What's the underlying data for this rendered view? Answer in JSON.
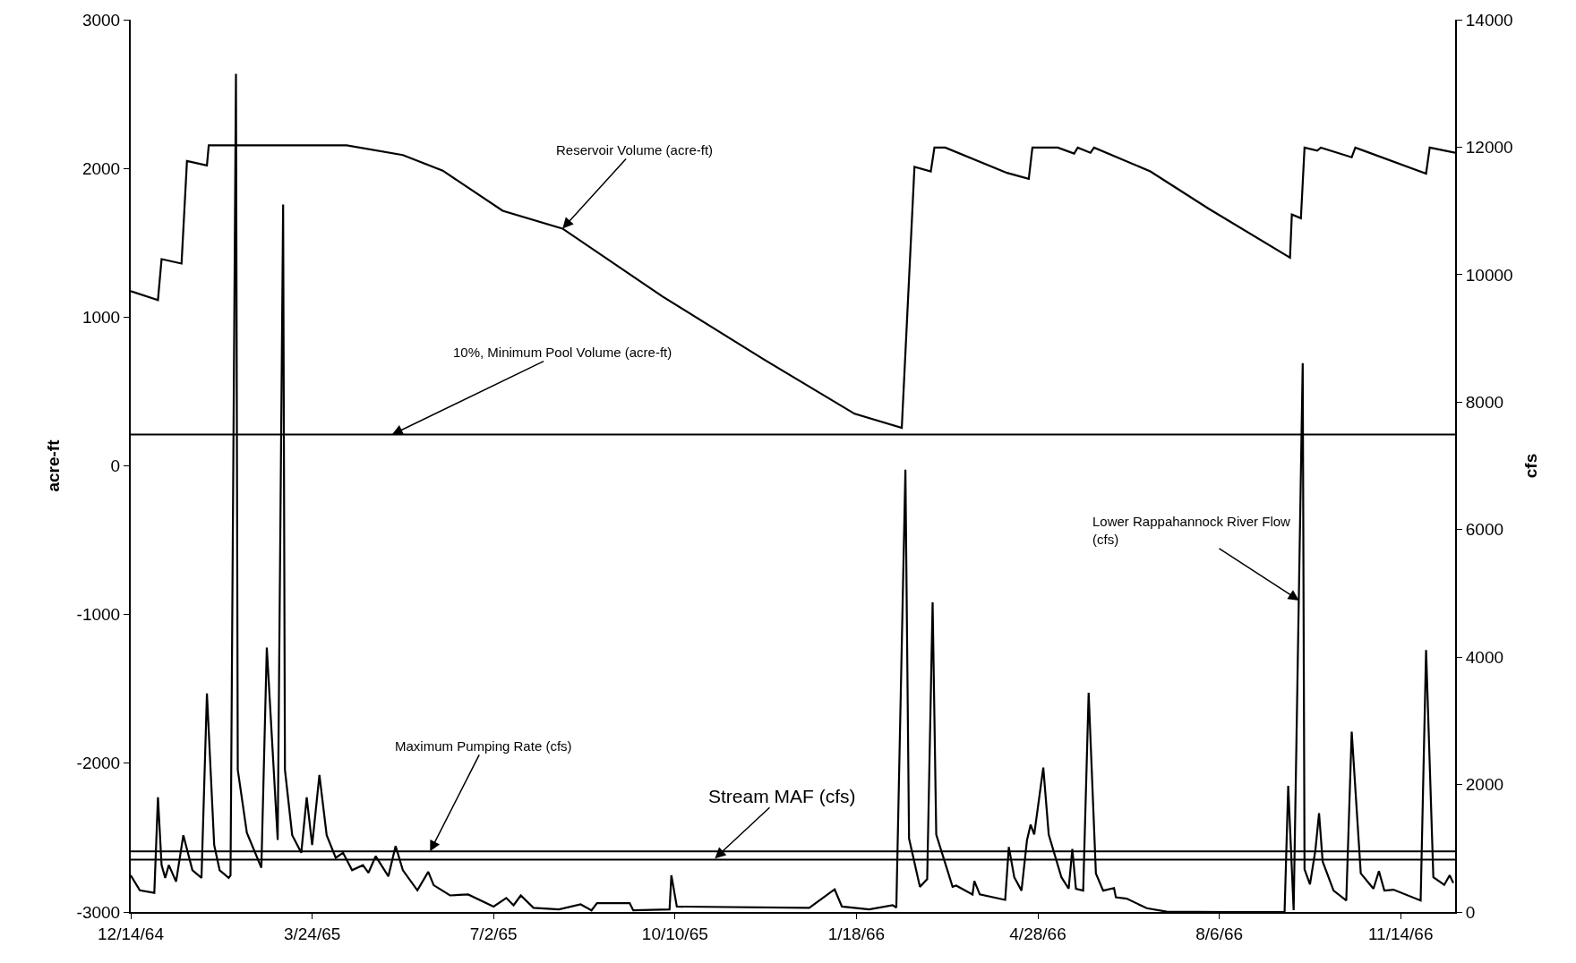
{
  "chart_data": {
    "type": "line",
    "ylabel": "acre-ft",
    "y2label": "cfs",
    "xlim": [
      "1964-12-14",
      "1966-12-14"
    ],
    "xticks": [
      {
        "value": "1964-12-14",
        "label": "12/14/64"
      },
      {
        "value": "1965-03-24",
        "label": "3/24/65"
      },
      {
        "value": "1965-07-02",
        "label": "7/2/65"
      },
      {
        "value": "1965-10-10",
        "label": "10/10/65"
      },
      {
        "value": "1966-01-18",
        "label": "1/18/66"
      },
      {
        "value": "1966-04-28",
        "label": "4/28/66"
      },
      {
        "value": "1966-08-06",
        "label": "8/6/66"
      },
      {
        "value": "1966-11-14",
        "label": "11/14/66"
      }
    ],
    "ylim": [
      -3000,
      3000
    ],
    "yticks": [
      -3000,
      -2000,
      -1000,
      0,
      1000,
      2000,
      3000
    ],
    "y2lim": [
      0,
      14000
    ],
    "y2ticks": [
      0,
      2000,
      4000,
      6000,
      8000,
      10000,
      12000,
      14000
    ],
    "marker": "none",
    "line_style": "solid",
    "series": [
      {
        "color": "#000000",
        "x": [
          "1964-12-14",
          "1964-12-29",
          "1964-12-31",
          "1965-01-11",
          "1965-01-14",
          "1965-01-25",
          "1965-01-26",
          "1965-04-12",
          "1965-05-13",
          "1965-06-04",
          "1965-07-07",
          "1965-08-09",
          "1965-10-03",
          "1965-11-28",
          "1966-01-17",
          "1966-02-12",
          "1966-02-19",
          "1966-02-28",
          "1966-03-02",
          "1966-03-08",
          "1966-04-11",
          "1966-04-23",
          "1966-04-25",
          "1966-05-09",
          "1966-05-18",
          "1966-05-20",
          "1966-05-27",
          "1966-05-29",
          "1966-06-29",
          "1966-07-31",
          "1966-09-14",
          "1966-09-15",
          "1966-09-20",
          "1966-09-22",
          "1966-09-29",
          "1966-10-01",
          "1966-10-18",
          "1966-10-20",
          "1966-11-28",
          "1966-11-30",
          "1966-12-14"
        ],
        "values": [
          1175,
          1115,
          1390,
          1360,
          2050,
          2020,
          2155,
          2155,
          2090,
          1985,
          1715,
          1595,
          1140,
          715,
          350,
          255,
          2010,
          1980,
          2140,
          2140,
          1970,
          1930,
          2140,
          2140,
          2100,
          2140,
          2105,
          2140,
          1980,
          1730,
          1400,
          1690,
          1665,
          2140,
          2120,
          2140,
          2075,
          2140,
          1965,
          2140,
          2105
        ]
      },
      {
        "color": "#000000",
        "axis": "y2",
        "x": [
          "1964-12-14",
          "1964-12-19",
          "1964-12-27",
          "1964-12-29",
          "1964-12-31",
          "1965-01-02",
          "1965-01-04",
          "1965-01-08",
          "1965-01-12",
          "1965-01-17",
          "1965-01-22",
          "1965-01-25",
          "1965-01-29",
          "1965-02-01",
          "1965-02-06",
          "1965-02-07",
          "1965-02-10",
          "1965-02-11",
          "1965-02-16",
          "1965-02-24",
          "1965-02-27",
          "1965-03-05",
          "1965-03-08",
          "1965-03-09",
          "1965-03-13",
          "1965-03-18",
          "1965-03-21",
          "1965-03-24",
          "1965-03-28",
          "1965-04-01",
          "1965-04-06",
          "1965-04-10",
          "1965-04-15",
          "1965-04-21",
          "1965-04-24",
          "1965-04-28",
          "1965-05-05",
          "1965-05-09",
          "1965-05-13",
          "1965-05-21",
          "1965-05-27",
          "1965-05-30",
          "1965-06-08",
          "1965-06-18",
          "1965-07-02",
          "1965-07-09",
          "1965-07-13",
          "1965-07-17",
          "1965-07-24",
          "1965-08-07",
          "1965-08-19",
          "1965-08-25",
          "1965-08-28",
          "1965-09-15",
          "1965-09-17",
          "1965-10-07",
          "1965-10-08",
          "1965-10-11",
          "1965-12-23",
          "1966-01-06",
          "1966-01-10",
          "1966-01-25",
          "1966-02-07",
          "1966-02-09",
          "1966-02-14",
          "1966-02-16",
          "1966-02-22",
          "1966-02-26",
          "1966-03-01",
          "1966-03-03",
          "1966-03-12",
          "1966-03-14",
          "1966-03-23",
          "1966-03-24",
          "1966-03-27",
          "1966-04-10",
          "1966-04-12",
          "1966-04-15",
          "1966-04-19",
          "1966-04-22",
          "1966-04-24",
          "1966-04-26",
          "1966-05-01",
          "1966-05-04",
          "1966-05-11",
          "1966-05-15",
          "1966-05-17",
          "1966-05-19",
          "1966-05-23",
          "1966-05-26",
          "1966-05-30",
          "1966-06-03",
          "1966-06-09",
          "1966-06-10",
          "1966-06-16",
          "1966-06-27",
          "1966-07-08",
          "1966-08-11",
          "1966-09-11",
          "1966-09-13",
          "1966-09-16",
          "1966-09-21",
          "1966-09-22",
          "1966-09-25",
          "1966-09-28",
          "1966-09-30",
          "1966-10-02",
          "1966-10-08",
          "1966-10-15",
          "1966-10-18",
          "1966-10-23",
          "1966-10-30",
          "1966-11-02",
          "1966-11-05",
          "1966-11-10",
          "1966-11-25",
          "1966-11-28",
          "1966-12-02",
          "1966-12-08",
          "1966-12-11",
          "1966-12-13"
        ],
        "values": [
          575,
          340,
          300,
          1800,
          735,
          535,
          735,
          475,
          1205,
          655,
          535,
          3430,
          1050,
          655,
          535,
          575,
          13150,
          2230,
          1245,
          695,
          4150,
          1130,
          11100,
          2230,
          1205,
          930,
          1800,
          1050,
          2150,
          1205,
          850,
          930,
          655,
          735,
          615,
          875,
          560,
          1035,
          655,
          340,
          630,
          420,
          260,
          275,
          85,
          220,
          105,
          260,
          65,
          40,
          120,
          25,
          140,
          140,
          25,
          40,
          575,
          85,
          65,
          355,
          85,
          40,
          105,
          70,
          6940,
          1155,
          395,
          515,
          4860,
          1215,
          395,
          415,
          275,
          485,
          275,
          190,
          1020,
          545,
          335,
          1125,
          1370,
          1215,
          2265,
          1215,
          545,
          365,
          990,
          365,
          335,
          3440,
          605,
          335,
          375,
          230,
          210,
          60,
          5,
          0,
          0,
          1980,
          30,
          8610,
          670,
          435,
          975,
          1550,
          790,
          335,
          180,
          2830,
          605,
          365,
          640,
          335,
          350,
          180,
          4110,
          545,
          425,
          575,
          455
        ]
      }
    ],
    "ref_lines": [
      {
        "axis": "y",
        "value": 210,
        "color": "#000000"
      },
      {
        "axis": "y2",
        "value": 950,
        "color": "#000000"
      },
      {
        "axis": "y2",
        "value": 820,
        "color": "#000000"
      }
    ],
    "annotations": [
      {
        "text": "Reservoir Volume (acre-ft)",
        "x": "1965-08-09",
        "y": 1595
      },
      {
        "text": "10%, Minimum Pool Volume (acre-ft)",
        "x": "1965-05-07",
        "y": 210
      },
      {
        "text": "Lower Rappahannock River Flow\n(cfs)",
        "x": "1966-09-19",
        "y": -905
      },
      {
        "text": "Maximum Pumping Rate (cfs)",
        "x": "1965-05-28",
        "y": -2593
      },
      {
        "text": "Stream MAF (cfs)",
        "x": "1965-11-01",
        "y": -2640
      }
    ]
  }
}
